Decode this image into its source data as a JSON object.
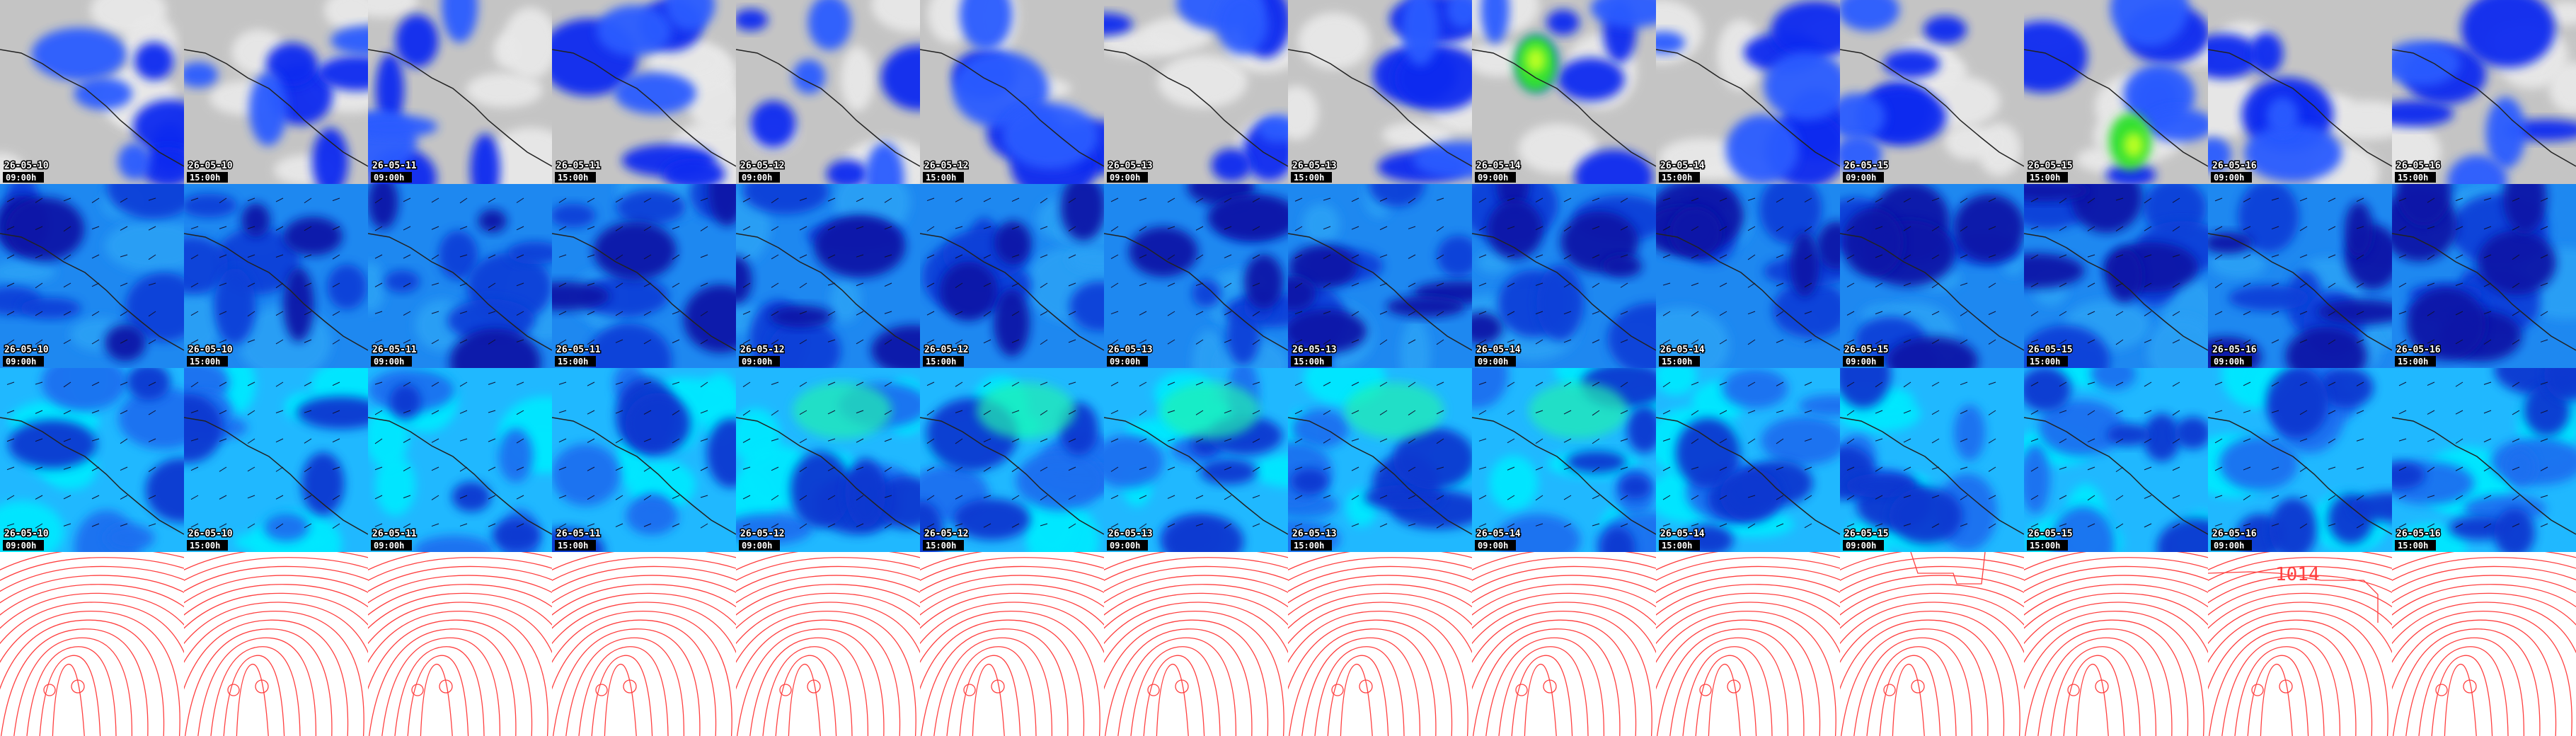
{
  "rows": [
    {
      "tiles": [
        {
          "date": "26-05-10",
          "time": "09:00h"
        },
        {
          "date": "26-05-10",
          "time": "15:00h"
        },
        {
          "date": "26-05-11",
          "time": "09:00h"
        },
        {
          "date": "26-05-11",
          "time": "15:00h"
        },
        {
          "date": "26-05-12",
          "time": "09:00h"
        },
        {
          "date": "26-05-12",
          "time": "15:00h"
        },
        {
          "date": "26-05-13",
          "time": "09:00h"
        },
        {
          "date": "26-05-13",
          "time": "15:00h"
        },
        {
          "date": "26-05-14",
          "time": "09:00h"
        },
        {
          "date": "26-05-14",
          "time": "15:00h"
        },
        {
          "date": "26-05-15",
          "time": "09:00h"
        },
        {
          "date": "26-05-15",
          "time": "15:00h"
        },
        {
          "date": "26-05-16",
          "time": "09:00h"
        },
        {
          "date": "26-05-16",
          "time": "15:00h"
        }
      ]
    },
    {
      "tiles": [
        {
          "date": "26-05-10",
          "time": "09:00h"
        },
        {
          "date": "26-05-10",
          "time": "15:00h"
        },
        {
          "date": "26-05-11",
          "time": "09:00h"
        },
        {
          "date": "26-05-11",
          "time": "15:00h"
        },
        {
          "date": "26-05-12",
          "time": "09:00h"
        },
        {
          "date": "26-05-12",
          "time": "15:00h"
        },
        {
          "date": "26-05-13",
          "time": "09:00h"
        },
        {
          "date": "26-05-13",
          "time": "15:00h"
        },
        {
          "date": "26-05-14",
          "time": "09:00h"
        },
        {
          "date": "26-05-14",
          "time": "15:00h"
        },
        {
          "date": "26-05-15",
          "time": "09:00h"
        },
        {
          "date": "26-05-15",
          "time": "15:00h"
        },
        {
          "date": "26-05-16",
          "time": "09:00h"
        },
        {
          "date": "26-05-16",
          "time": "15:00h"
        }
      ]
    },
    {
      "tiles": [
        {
          "date": "26-05-10",
          "time": "09:00h"
        },
        {
          "date": "26-05-10",
          "time": "15:00h"
        },
        {
          "date": "26-05-11",
          "time": "09:00h"
        },
        {
          "date": "26-05-11",
          "time": "15:00h"
        },
        {
          "date": "26-05-12",
          "time": "09:00h"
        },
        {
          "date": "26-05-12",
          "time": "15:00h"
        },
        {
          "date": "26-05-13",
          "time": "09:00h"
        },
        {
          "date": "26-05-13",
          "time": "15:00h"
        },
        {
          "date": "26-05-14",
          "time": "09:00h"
        },
        {
          "date": "26-05-14",
          "time": "15:00h"
        },
        {
          "date": "26-05-15",
          "time": "09:00h"
        },
        {
          "date": "26-05-15",
          "time": "15:00h"
        },
        {
          "date": "26-05-16",
          "time": "09:00h"
        },
        {
          "date": "26-05-16",
          "time": "15:00h"
        }
      ]
    }
  ],
  "contour_label": "1014"
}
